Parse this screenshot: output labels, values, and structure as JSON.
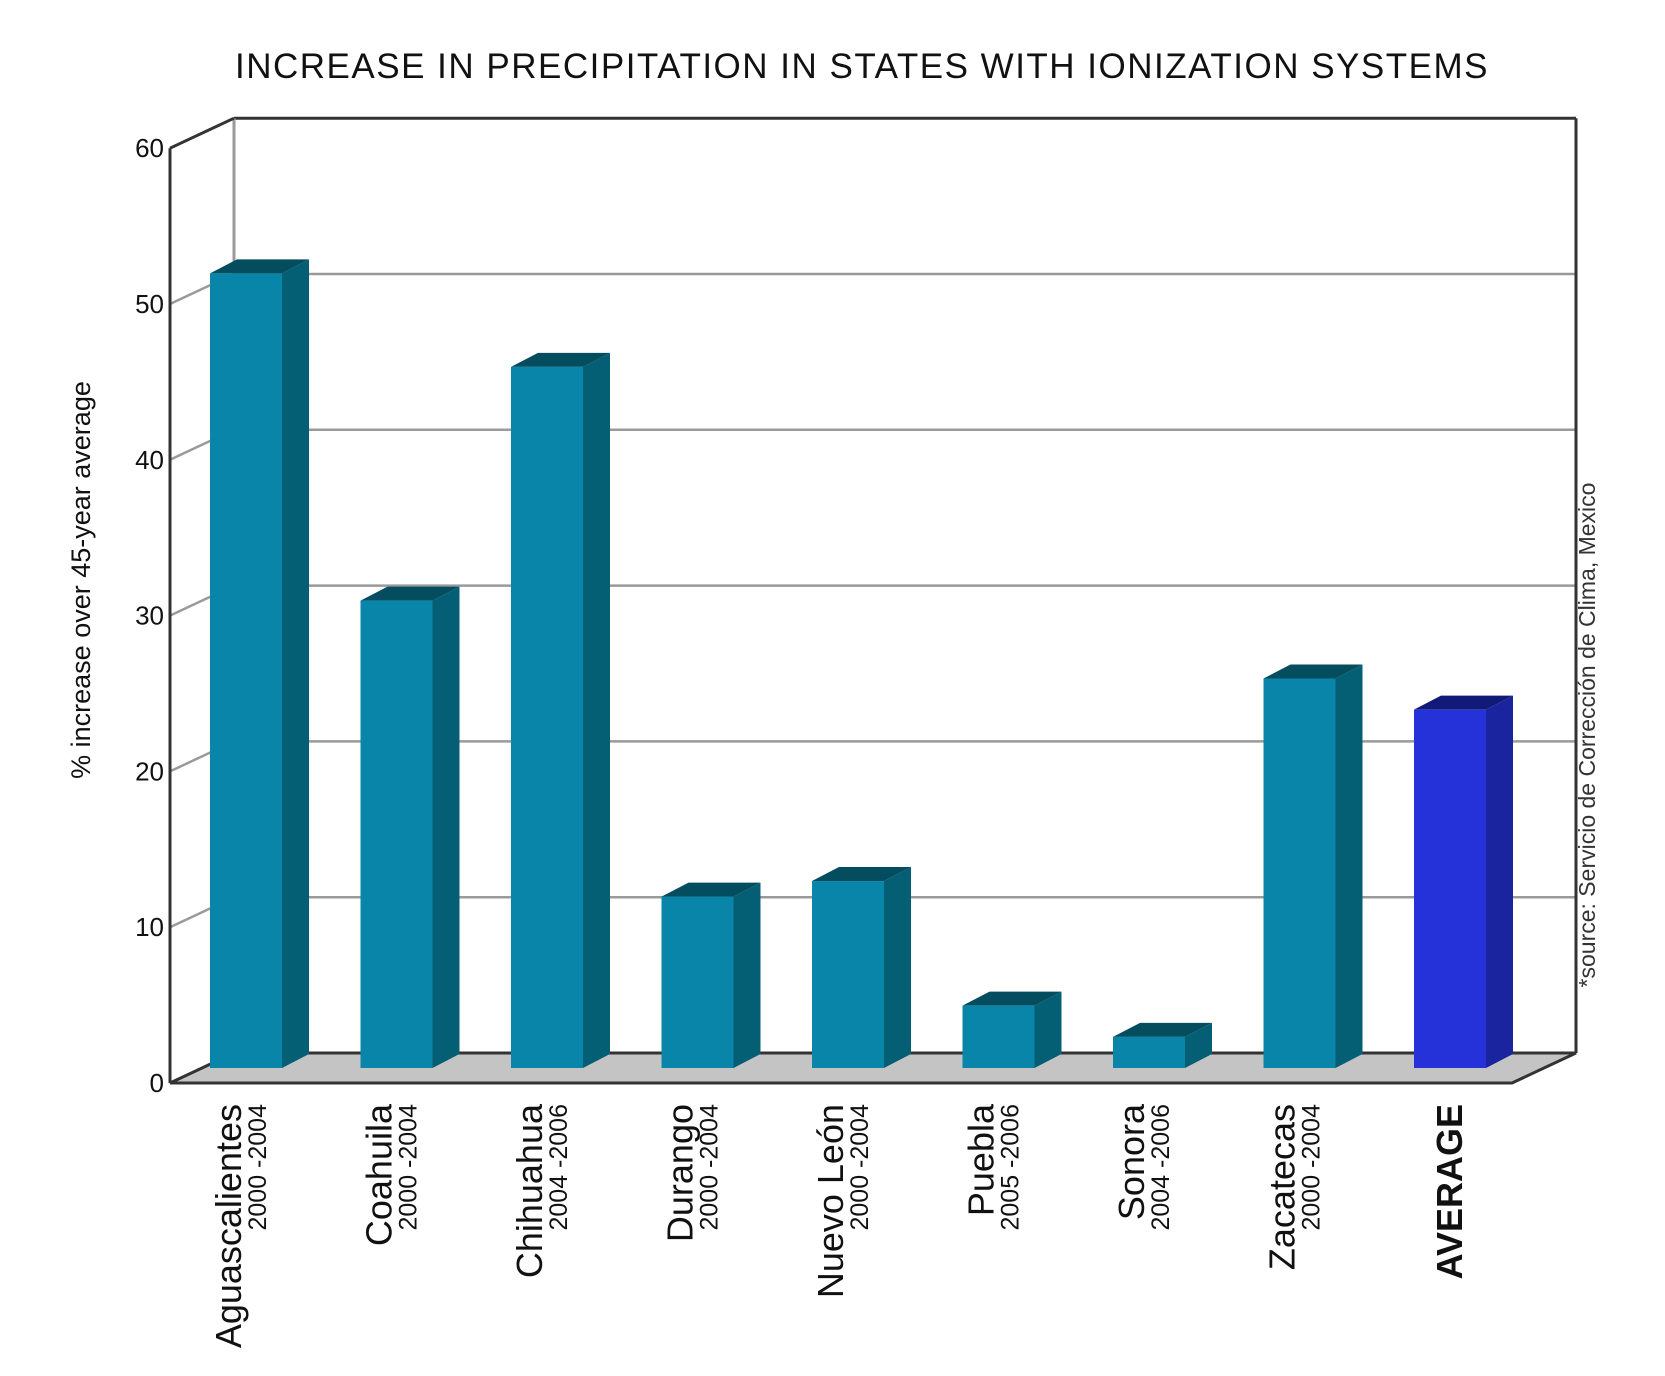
{
  "chart_data": {
    "type": "bar",
    "title": "INCREASE IN PRECIPITATION IN STATES WITH IONIZATION SYSTEMS",
    "ylabel": "% increase over 45-year average",
    "source": "*source: Servicio de Corrección de Clima, Mexico",
    "ylim": [
      0,
      60
    ],
    "yticks": [
      0,
      10,
      20,
      30,
      40,
      50,
      60
    ],
    "grid": true,
    "categories": [
      {
        "name": "Aguascalientes",
        "years": "2000 -2004"
      },
      {
        "name": "Coahuila",
        "years": "2000 -2004"
      },
      {
        "name": "Chihuahua",
        "years": "2004 -2006"
      },
      {
        "name": "Durango",
        "years": "2000 -2004"
      },
      {
        "name": "Nuevo León",
        "years": "2000 -2004"
      },
      {
        "name": "Puebla",
        "years": "2005 -2006"
      },
      {
        "name": "Sonora",
        "years": "2004 -2006"
      },
      {
        "name": "Zacatecas",
        "years": "2000 -2004"
      },
      {
        "name": "AVERAGE",
        "years": ""
      }
    ],
    "values": [
      51,
      30,
      45,
      11,
      12,
      4,
      2,
      25,
      23
    ],
    "colors": {
      "bar_front": "#0885a8",
      "bar_side": "#045f75",
      "bar_top": "#034d5e",
      "avg_front": "#2532d9",
      "avg_side": "#1a249e",
      "avg_top": "#121a78",
      "floor": "#c4c4c4",
      "grid": "#9a9a9a",
      "axis": "#333333"
    }
  }
}
